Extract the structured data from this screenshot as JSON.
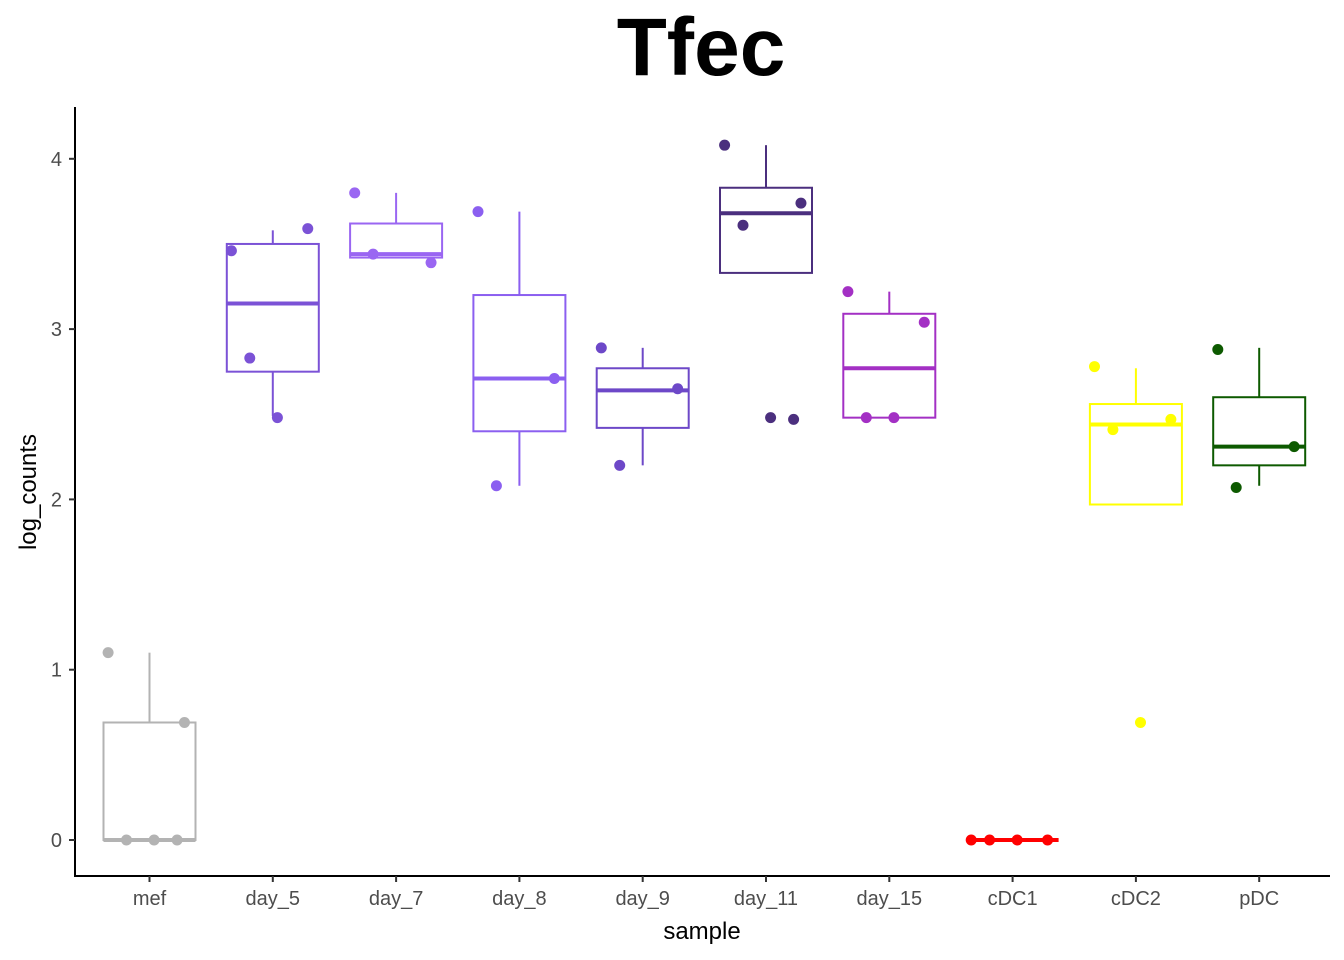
{
  "chart_data": {
    "type": "box",
    "title": "Tfec",
    "xlabel": "sample",
    "ylabel": "log_counts",
    "ylim": [
      -0.2,
      4.3
    ],
    "yticks": [
      0,
      1,
      2,
      3,
      4
    ],
    "categories": [
      "mef",
      "day_5",
      "day_7",
      "day_8",
      "day_9",
      "day_11",
      "day_15",
      "cDC1",
      "cDC2",
      "pDC"
    ],
    "grid": false,
    "legend": "none",
    "groups": [
      {
        "name": "mef",
        "color": "#b3b3b3",
        "box": {
          "q1": 0.0,
          "median": 0.0,
          "q3": 0.69,
          "whisker_low": 0.0,
          "whisker_high": 1.1
        },
        "points": [
          1.1,
          0.69,
          0.0,
          0.0,
          0.0
        ]
      },
      {
        "name": "day_5",
        "color": "#7b52d6",
        "box": {
          "q1": 2.75,
          "median": 3.15,
          "q3": 3.5,
          "whisker_low": 2.49,
          "whisker_high": 3.58
        },
        "points": [
          3.46,
          3.59,
          2.83,
          2.48
        ]
      },
      {
        "name": "day_7",
        "color": "#9a66f2",
        "box": {
          "q1": 3.42,
          "median": 3.44,
          "q3": 3.62,
          "whisker_low": 3.42,
          "whisker_high": 3.8
        },
        "points": [
          3.8,
          3.39,
          3.44
        ]
      },
      {
        "name": "day_8",
        "color": "#8b5ff0",
        "box": {
          "q1": 2.4,
          "median": 2.71,
          "q3": 3.2,
          "whisker_low": 2.08,
          "whisker_high": 3.69
        },
        "points": [
          3.69,
          2.71,
          2.08
        ]
      },
      {
        "name": "day_9",
        "color": "#6d48c8",
        "box": {
          "q1": 2.42,
          "median": 2.64,
          "q3": 2.77,
          "whisker_low": 2.2,
          "whisker_high": 2.89
        },
        "points": [
          2.89,
          2.65,
          2.2
        ]
      },
      {
        "name": "day_11",
        "color": "#4b2f7e",
        "box": {
          "q1": 3.33,
          "median": 3.68,
          "q3": 3.83,
          "whisker_low": 3.33,
          "whisker_high": 4.08
        },
        "points": [
          4.08,
          3.74,
          3.61,
          2.48,
          2.47
        ]
      },
      {
        "name": "day_15",
        "color": "#a330c4",
        "box": {
          "q1": 2.48,
          "median": 2.77,
          "q3": 3.09,
          "whisker_low": 2.48,
          "whisker_high": 3.22
        },
        "points": [
          3.22,
          3.04,
          2.48,
          2.48
        ]
      },
      {
        "name": "cDC1",
        "color": "#ff0000",
        "box": {
          "q1": 0.0,
          "median": 0.0,
          "q3": 0.0,
          "whisker_low": 0.0,
          "whisker_high": 0.0
        },
        "points": [
          0.0,
          0.0,
          0.0,
          0.0
        ]
      },
      {
        "name": "cDC2",
        "color": "#ffff00",
        "box": {
          "q1": 1.97,
          "median": 2.44,
          "q3": 2.56,
          "whisker_low": 1.97,
          "whisker_high": 2.77
        },
        "points": [
          2.78,
          2.47,
          2.41,
          0.69
        ]
      },
      {
        "name": "pDC",
        "color": "#0d5a00",
        "box": {
          "q1": 2.2,
          "median": 2.31,
          "q3": 2.6,
          "whisker_low": 2.08,
          "whisker_high": 2.89
        },
        "points": [
          2.88,
          2.31,
          2.07
        ]
      }
    ]
  }
}
